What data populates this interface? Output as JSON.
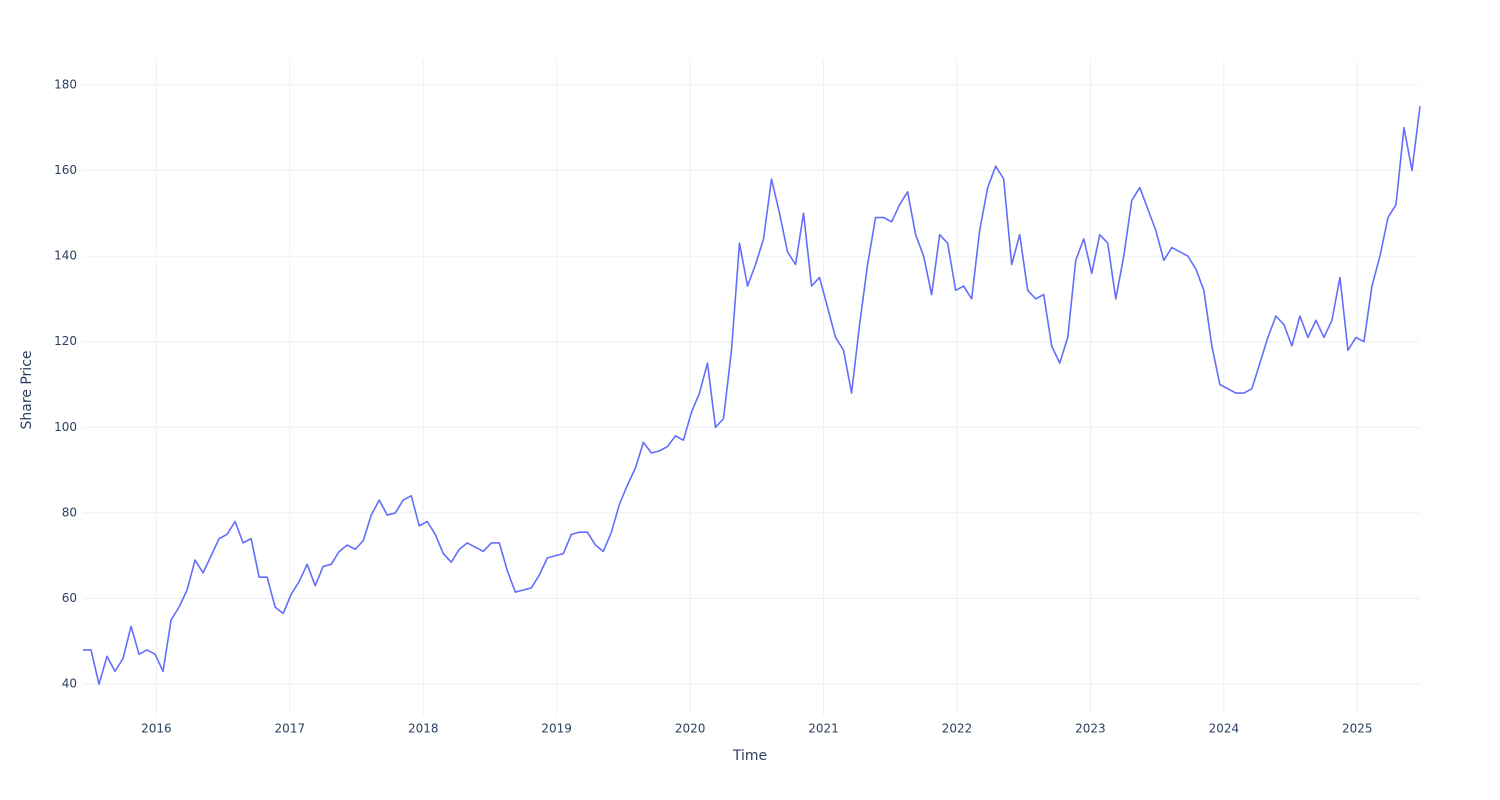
{
  "chart_data": {
    "type": "line",
    "x_label": "Time",
    "y_label": "Share Price",
    "color": "#636efa",
    "grid": true,
    "xlim": [
      2015.45,
      2025.47
    ],
    "ylim": [
      32.8,
      185.8
    ],
    "xticks": [
      2016,
      2017,
      2018,
      2019,
      2020,
      2021,
      2022,
      2023,
      2024,
      2025
    ],
    "yticks": [
      40,
      60,
      80,
      100,
      120,
      140,
      160,
      180
    ],
    "x": [
      2015.45,
      2015.51,
      2015.57,
      2015.63,
      2015.69,
      2015.75,
      2015.81,
      2015.87,
      2015.93,
      2015.99,
      2016.05,
      2016.11,
      2016.17,
      2016.23,
      2016.29,
      2016.35,
      2016.41,
      2016.47,
      2016.53,
      2016.59,
      2016.65,
      2016.71,
      2016.77,
      2016.83,
      2016.89,
      2016.95,
      2017.01,
      2017.07,
      2017.13,
      2017.19,
      2017.25,
      2017.31,
      2017.37,
      2017.43,
      2017.49,
      2017.55,
      2017.61,
      2017.67,
      2017.73,
      2017.79,
      2017.85,
      2017.91,
      2017.97,
      2018.03,
      2018.09,
      2018.15,
      2018.21,
      2018.27,
      2018.33,
      2018.39,
      2018.45,
      2018.51,
      2018.57,
      2018.63,
      2018.69,
      2018.75,
      2018.81,
      2018.87,
      2018.93,
      2018.99,
      2019.05,
      2019.11,
      2019.17,
      2019.23,
      2019.29,
      2019.35,
      2019.41,
      2019.47,
      2019.53,
      2019.59,
      2019.65,
      2019.71,
      2019.77,
      2019.83,
      2019.89,
      2019.95,
      2020.01,
      2020.07,
      2020.13,
      2020.19,
      2020.25,
      2020.31,
      2020.37,
      2020.43,
      2020.49,
      2020.55,
      2020.61,
      2020.67,
      2020.73,
      2020.79,
      2020.85,
      2020.91,
      2020.97,
      2021.03,
      2021.09,
      2021.15,
      2021.21,
      2021.27,
      2021.33,
      2021.39,
      2021.45,
      2021.51,
      2021.57,
      2021.63,
      2021.69,
      2021.75,
      2021.81,
      2021.87,
      2021.93,
      2021.99,
      2022.05,
      2022.11,
      2022.17,
      2022.23,
      2022.29,
      2022.35,
      2022.41,
      2022.47,
      2022.53,
      2022.59,
      2022.65,
      2022.71,
      2022.77,
      2022.83,
      2022.89,
      2022.95,
      2023.01,
      2023.07,
      2023.13,
      2023.19,
      2023.25,
      2023.31,
      2023.37,
      2023.43,
      2023.49,
      2023.55,
      2023.61,
      2023.67,
      2023.73,
      2023.79,
      2023.85,
      2023.91,
      2023.97,
      2024.03,
      2024.09,
      2024.15,
      2024.21,
      2024.27,
      2024.33,
      2024.39,
      2024.45,
      2024.51,
      2024.57,
      2024.63,
      2024.69,
      2024.75,
      2024.81,
      2024.87,
      2024.93,
      2024.99,
      2025.05,
      2025.11,
      2025.17,
      2025.23,
      2025.29,
      2025.35,
      2025.41,
      2025.47
    ],
    "values": [
      48,
      48,
      40,
      46.5,
      43,
      46,
      53.5,
      47,
      48,
      47,
      43,
      55,
      58,
      62,
      69,
      66,
      70,
      74,
      75,
      78,
      73,
      74,
      65,
      65,
      58,
      56.5,
      61,
      64,
      68,
      63,
      67.5,
      68,
      71,
      72.5,
      71.5,
      73.5,
      79.5,
      83,
      79.5,
      80,
      83,
      84,
      77,
      78,
      75,
      70.5,
      68.5,
      71.5,
      73,
      72,
      71,
      73,
      73,
      66.5,
      61.5,
      62,
      62.5,
      65.5,
      69.5,
      70,
      70.5,
      75,
      75.5,
      75.5,
      72.5,
      71,
      75.5,
      82,
      86.5,
      90.5,
      96.5,
      94,
      94.5,
      95.5,
      98,
      97,
      103.5,
      108,
      115,
      100,
      102,
      118,
      143,
      133,
      138,
      144,
      158,
      150,
      141,
      138,
      150,
      133,
      135,
      128,
      121,
      118,
      108,
      124,
      138,
      149,
      149,
      148,
      152,
      155,
      145,
      140,
      131,
      145,
      143,
      132,
      133,
      130,
      146,
      156,
      161,
      158,
      138,
      145,
      132,
      130,
      131,
      119,
      115,
      121,
      139,
      144,
      136,
      145,
      143,
      130,
      140,
      153,
      156,
      151,
      146,
      139,
      142,
      141,
      140,
      137,
      132,
      119,
      110,
      109,
      108,
      108,
      109,
      115,
      121,
      126,
      124,
      119,
      126,
      121,
      125,
      121,
      125,
      135,
      118,
      121,
      120,
      133,
      140,
      149,
      152,
      170,
      160,
      175
    ]
  }
}
